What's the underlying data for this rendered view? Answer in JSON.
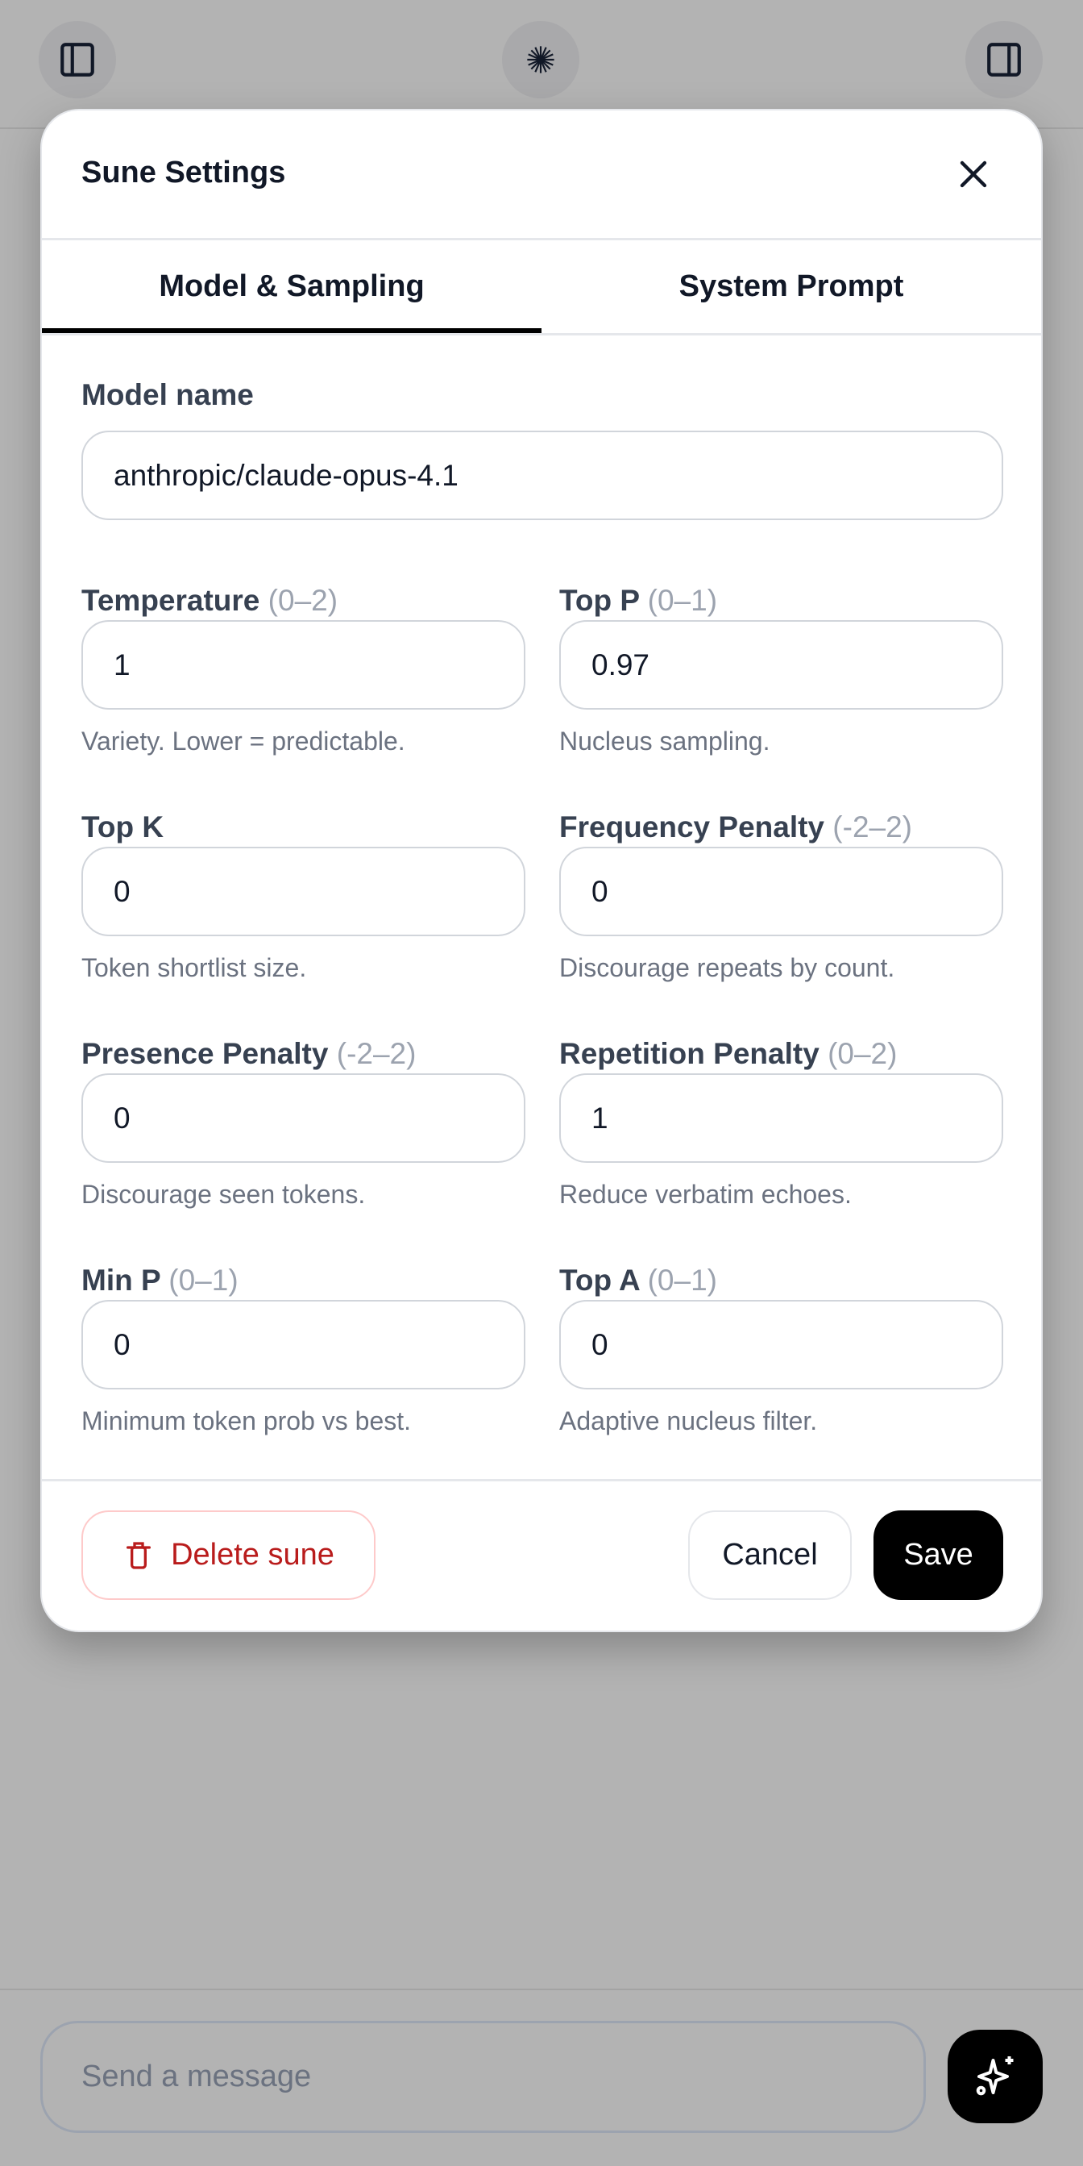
{
  "top_bar": {
    "left_icon": "sidebar-left-icon",
    "center_icon": "sune-logo-icon",
    "right_icon": "sidebar-right-icon"
  },
  "modal": {
    "title": "Sune Settings",
    "close_icon": "close-icon",
    "tabs": [
      {
        "label": "Model & Sampling",
        "active": true
      },
      {
        "label": "System Prompt",
        "active": false
      }
    ],
    "model_name": {
      "label": "Model name",
      "value": "anthropic/claude-opus-4.1"
    },
    "fields": [
      {
        "label": "Temperature",
        "range": "(0–2)",
        "value": "1",
        "help": "Variety. Lower = predictable."
      },
      {
        "label": "Top P",
        "range": "(0–1)",
        "value": "0.97",
        "help": "Nucleus sampling."
      },
      {
        "label": "Top K",
        "range": "",
        "value": "0",
        "help": "Token shortlist size."
      },
      {
        "label": "Frequency Penalty",
        "range": "(-2–2)",
        "value": "0",
        "help": "Discourage repeats by count."
      },
      {
        "label": "Presence Penalty",
        "range": "(-2–2)",
        "value": "0",
        "help": "Discourage seen tokens."
      },
      {
        "label": "Repetition Penalty",
        "range": "(0–2)",
        "value": "1",
        "help": "Reduce verbatim echoes."
      },
      {
        "label": "Min P",
        "range": "(0–1)",
        "value": "0",
        "help": "Minimum token prob vs best."
      },
      {
        "label": "Top A",
        "range": "(0–1)",
        "value": "0",
        "help": "Adaptive nucleus filter."
      }
    ],
    "footer": {
      "delete_label": "Delete sune",
      "cancel_label": "Cancel",
      "save_label": "Save"
    }
  },
  "composer": {
    "placeholder": "Send a message",
    "send_icon": "sparkles-icon"
  },
  "colors": {
    "danger": "#b91c1c",
    "primary": "#000000",
    "overlay": "#b3b3b3"
  }
}
